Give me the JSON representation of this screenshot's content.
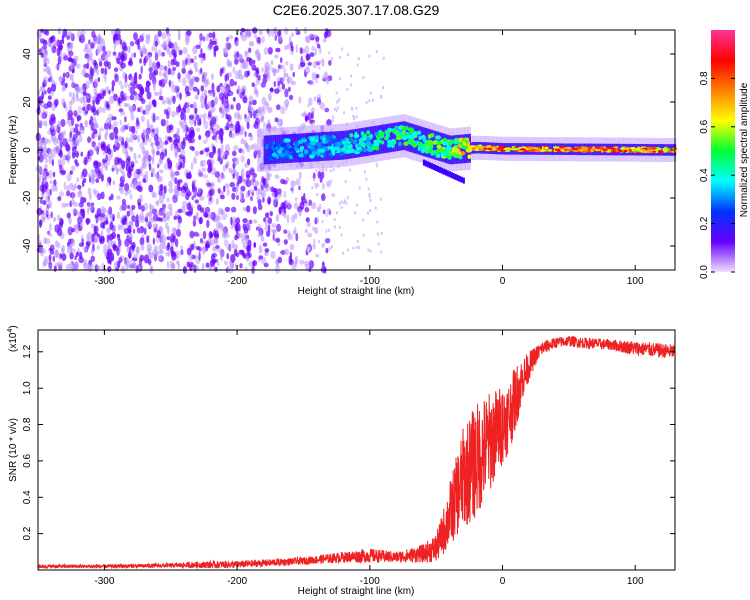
{
  "title": "C2E6.2025.307.17.08.G29",
  "chart_data": [
    {
      "type": "heatmap",
      "title": "C2E6.2025.307.17.08.G29",
      "xlabel": "Height of straight line (km)",
      "ylabel": "Frequency (Hz)",
      "xlim": [
        -350,
        130
      ],
      "ylim": [
        -50,
        50
      ],
      "xticks": [
        -300,
        -200,
        -100,
        0,
        100
      ],
      "yticks": [
        -40,
        -20,
        0,
        20,
        40
      ],
      "colorbar": {
        "label": "Normalized spectral amplitude",
        "range": [
          0,
          1
        ],
        "ticks": [
          "0.0",
          "0.2",
          "0.4",
          "0.6",
          "0.8"
        ],
        "tick_values": [
          0,
          0.2,
          0.4,
          0.6,
          0.8
        ],
        "colors": [
          "#f0e0ff",
          "#6600ff",
          "#0033ff",
          "#00ffff",
          "#00ff33",
          "#ffff00",
          "#ff8000",
          "#ff0000",
          "#ff3399"
        ]
      },
      "ridge": {
        "description_points": [
          {
            "x": -180,
            "freq": 0,
            "amp": 0.35
          },
          {
            "x": -120,
            "freq": 2,
            "amp": 0.45
          },
          {
            "x": -75,
            "freq": 6,
            "amp": 0.55
          },
          {
            "x": -40,
            "freq": 0,
            "amp": 0.6
          },
          {
            "x": -20,
            "freq": 1,
            "amp": 0.9
          },
          {
            "x": 0,
            "freq": 0.5,
            "amp": 0.95
          },
          {
            "x": 130,
            "freq": 0,
            "amp": 0.9
          }
        ]
      }
    },
    {
      "type": "line",
      "xlabel": "Height of straight line (km)",
      "ylabel": "SNR (10 * v/v)",
      "y_multiplier_label": "(x10",
      "y_multiplier_exp": "4",
      "y_multiplier_close": ")",
      "xlim": [
        -350,
        130
      ],
      "ylim": [
        0,
        1.32
      ],
      "xticks": [
        -300,
        -200,
        -100,
        0,
        100
      ],
      "yticks": [
        0.2,
        0.4,
        0.6,
        0.8,
        1.0,
        1.2
      ],
      "ytick_labels": [
        "0.2",
        "0.4",
        "0.6",
        "0.8",
        "1.0",
        "1.2"
      ],
      "series": [
        {
          "name": "SNR",
          "color": "#ee2222",
          "x": [
            -350,
            -300,
            -250,
            -220,
            -200,
            -150,
            -120,
            -100,
            -80,
            -60,
            -50,
            -45,
            -40,
            -35,
            -30,
            -25,
            -20,
            -15,
            -10,
            -5,
            0,
            5,
            10,
            15,
            20,
            25,
            30,
            40,
            50,
            60,
            80,
            100,
            130
          ],
          "values": [
            0.02,
            0.02,
            0.025,
            0.03,
            0.03,
            0.05,
            0.07,
            0.08,
            0.07,
            0.09,
            0.12,
            0.2,
            0.3,
            0.4,
            0.5,
            0.55,
            0.6,
            0.65,
            0.7,
            0.75,
            0.8,
            0.85,
            0.95,
            1.05,
            1.12,
            1.18,
            1.22,
            1.25,
            1.26,
            1.25,
            1.24,
            1.22,
            1.2
          ],
          "noise": [
            0.01,
            0.01,
            0.012,
            0.02,
            0.02,
            0.02,
            0.03,
            0.04,
            0.03,
            0.05,
            0.08,
            0.12,
            0.18,
            0.22,
            0.28,
            0.3,
            0.32,
            0.3,
            0.28,
            0.25,
            0.22,
            0.2,
            0.18,
            0.12,
            0.08,
            0.05,
            0.04,
            0.03,
            0.03,
            0.03,
            0.03,
            0.04,
            0.04
          ]
        }
      ]
    }
  ]
}
